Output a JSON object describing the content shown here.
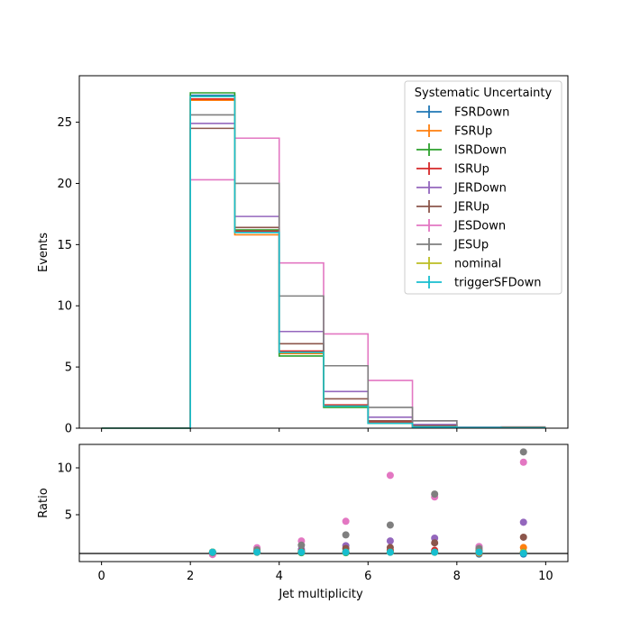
{
  "chart_data": [
    {
      "type": "line",
      "drawstyle": "steps",
      "panel": "top",
      "ylabel": "Events",
      "xlim": [
        -0.5,
        10.5
      ],
      "ylim": [
        0,
        28.8
      ],
      "yticks": [
        0,
        5,
        10,
        15,
        20,
        25
      ],
      "xticks": [
        0,
        2,
        4,
        6,
        8,
        10
      ],
      "grid": false,
      "legend": {
        "title": "Systematic Uncertainty",
        "placement": "top-right"
      },
      "bin_edges": [
        0,
        1,
        2,
        3,
        4,
        5,
        6,
        7,
        8,
        9,
        10
      ],
      "series": [
        {
          "name": "FSRDown",
          "color": "#1f77b4",
          "values": [
            0,
            0,
            27.2,
            16.0,
            6.2,
            1.8,
            0.4,
            0.12,
            0.05,
            0.02
          ]
        },
        {
          "name": "FSRUp",
          "color": "#ff7f0e",
          "values": [
            0,
            0,
            26.8,
            15.8,
            6.1,
            1.8,
            0.5,
            0.12,
            0.05,
            0.02
          ]
        },
        {
          "name": "ISRDown",
          "color": "#2ca02c",
          "values": [
            0,
            0,
            27.4,
            16.2,
            5.9,
            1.7,
            0.4,
            0.12,
            0.05,
            0.02
          ]
        },
        {
          "name": "ISRUp",
          "color": "#d62728",
          "values": [
            0,
            0,
            26.9,
            16.1,
            6.3,
            1.9,
            0.5,
            0.13,
            0.05,
            0.02
          ]
        },
        {
          "name": "JERDown",
          "color": "#9467bd",
          "values": [
            0,
            0,
            24.9,
            17.3,
            7.9,
            3.0,
            0.9,
            0.3,
            0.08,
            0.04
          ]
        },
        {
          "name": "JERUp",
          "color": "#8c564b",
          "values": [
            0,
            0,
            24.5,
            16.4,
            6.9,
            2.4,
            0.6,
            0.2,
            0.06,
            0.03
          ]
        },
        {
          "name": "JESDown",
          "color": "#e377c2",
          "values": [
            0,
            0,
            20.3,
            23.7,
            13.5,
            7.7,
            3.9,
            0.6,
            0.08,
            0.1
          ]
        },
        {
          "name": "JESUp",
          "color": "#7f7f7f",
          "values": [
            0,
            0,
            25.6,
            20.0,
            10.8,
            5.1,
            1.7,
            0.6,
            0.07,
            0.1
          ]
        },
        {
          "name": "nominal",
          "color": "#bcbd22",
          "values": [
            0,
            0,
            27.1,
            16.0,
            6.2,
            1.8,
            0.4,
            0.1,
            0.05,
            0.02
          ]
        },
        {
          "name": "triggerSFDown",
          "color": "#17becf",
          "values": [
            0,
            0,
            27.1,
            16.0,
            6.2,
            1.8,
            0.4,
            0.1,
            0.05,
            0.02
          ]
        }
      ]
    },
    {
      "type": "scatter",
      "panel": "bottom",
      "xlabel": "Jet multiplicity",
      "ylabel": "Ratio",
      "xlim": [
        -0.5,
        10.5
      ],
      "ylim": [
        0,
        12.5
      ],
      "yticks": [
        5,
        10
      ],
      "xticks": [
        0,
        2,
        4,
        6,
        8,
        10
      ],
      "reference_line": 1,
      "x": [
        2.5,
        3.5,
        4.5,
        5.5,
        6.5,
        7.5,
        8.5,
        9.5
      ],
      "series": [
        {
          "name": "FSRDown",
          "color": "#1f77b4",
          "values": [
            1.0,
            1.0,
            1.0,
            1.0,
            1.0,
            1.0,
            0.8,
            0.8
          ]
        },
        {
          "name": "FSRUp",
          "color": "#ff7f0e",
          "values": [
            0.99,
            0.99,
            1.0,
            1.0,
            1.2,
            1.1,
            0.9,
            1.5
          ]
        },
        {
          "name": "ISRDown",
          "color": "#2ca02c",
          "values": [
            1.01,
            1.01,
            0.95,
            0.95,
            1.0,
            1.0,
            1.0,
            1.0
          ]
        },
        {
          "name": "ISRUp",
          "color": "#d62728",
          "values": [
            0.99,
            1.0,
            1.02,
            1.05,
            1.2,
            1.2,
            1.0,
            1.0
          ]
        },
        {
          "name": "JERDown",
          "color": "#9467bd",
          "values": [
            0.92,
            1.08,
            1.3,
            1.7,
            2.2,
            2.5,
            1.6,
            4.2
          ]
        },
        {
          "name": "JERUp",
          "color": "#8c564b",
          "values": [
            0.9,
            1.03,
            1.1,
            1.4,
            1.5,
            2.0,
            1.2,
            2.6
          ]
        },
        {
          "name": "JESDown",
          "color": "#e377c2",
          "values": [
            0.75,
            1.48,
            2.2,
            4.3,
            9.2,
            6.9,
            1.6,
            10.6
          ]
        },
        {
          "name": "JESUp",
          "color": "#7f7f7f",
          "values": [
            0.94,
            1.25,
            1.75,
            2.85,
            3.9,
            7.2,
            1.4,
            11.7
          ]
        },
        {
          "name": "nominal",
          "color": "#bcbd22",
          "values": [
            1.0,
            1.0,
            1.0,
            1.0,
            1.0,
            1.0,
            1.0,
            1.0
          ]
        },
        {
          "name": "triggerSFDown",
          "color": "#17becf",
          "values": [
            1.0,
            1.0,
            1.0,
            1.0,
            1.0,
            1.0,
            1.0,
            0.9
          ]
        }
      ]
    }
  ]
}
